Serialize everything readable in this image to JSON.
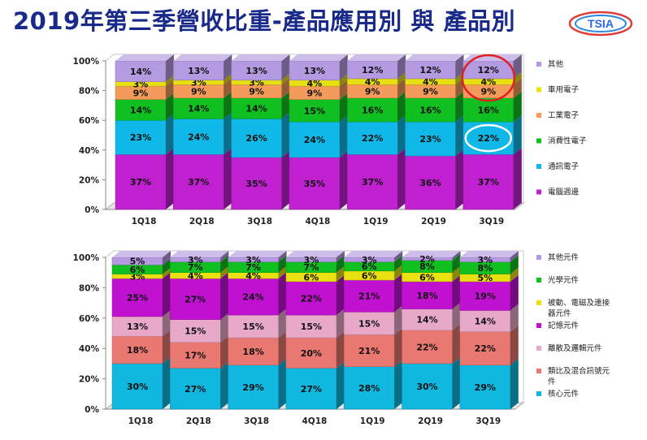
{
  "title": "2019年第三季營收比重-產品應用別 與 產品別",
  "logo_text": "TSIA",
  "colors": {
    "title": "#1a2a8a",
    "highlight_red": "#e02020",
    "highlight_white": "#ffffff"
  },
  "chart_data": [
    {
      "type": "bar",
      "stacked": true,
      "percent": true,
      "categories": [
        "1Q18",
        "2Q18",
        "3Q18",
        "4Q18",
        "1Q19",
        "2Q19",
        "3Q19"
      ],
      "y_ticks": [
        "0%",
        "20%",
        "40%",
        "60%",
        "80%",
        "100%"
      ],
      "ylim": [
        0,
        100
      ],
      "legend_position": "right",
      "series": [
        {
          "name": "電腦週邊",
          "color": "#c020d0",
          "values": [
            37,
            37,
            35,
            35,
            37,
            36,
            37
          ],
          "labels": [
            "37%",
            "37%",
            "35%",
            "35%",
            "37%",
            "36%",
            "37%"
          ]
        },
        {
          "name": "通訊電子",
          "color": "#10b8e8",
          "values": [
            23,
            24,
            26,
            24,
            22,
            23,
            22
          ],
          "labels": [
            "23%",
            "24%",
            "26%",
            "24%",
            "22%",
            "23%",
            "22%"
          ]
        },
        {
          "name": "消費性電子",
          "color": "#10c020",
          "values": [
            14,
            14,
            14,
            15,
            16,
            16,
            16
          ],
          "labels": [
            "14%",
            "14%",
            "14%",
            "15%",
            "16%",
            "16%",
            "16%"
          ]
        },
        {
          "name": "工業電子",
          "color": "#f49a5a",
          "values": [
            9,
            9,
            9,
            9,
            9,
            9,
            9
          ],
          "labels": [
            "9%",
            "9%",
            "9%",
            "9%",
            "9%",
            "9%",
            "9%"
          ]
        },
        {
          "name": "車用電子",
          "color": "#e8e010",
          "values": [
            3,
            3,
            3,
            4,
            4,
            4,
            4
          ],
          "labels": [
            "3%",
            "3%",
            "3%",
            "4%",
            "4%",
            "4%",
            "4%"
          ]
        },
        {
          "name": "其他",
          "color": "#b49ae0",
          "values": [
            14,
            13,
            13,
            13,
            12,
            12,
            12
          ],
          "labels": [
            "14%",
            "13%",
            "13%",
            "13%",
            "12%",
            "12%",
            "12%"
          ]
        }
      ],
      "highlights": [
        {
          "shape": "ellipse",
          "category": "3Q19",
          "series": "其他",
          "color": "red"
        },
        {
          "shape": "ellipse",
          "category": "3Q19",
          "series": "通訊電子",
          "color": "white"
        }
      ]
    },
    {
      "type": "bar",
      "stacked": true,
      "percent": true,
      "categories": [
        "1Q18",
        "2Q18",
        "3Q18",
        "4Q18",
        "1Q19",
        "2Q19",
        "3Q19"
      ],
      "y_ticks": [
        "0%",
        "20%",
        "40%",
        "60%",
        "80%",
        "100%"
      ],
      "ylim": [
        0,
        100
      ],
      "legend_position": "right",
      "series": [
        {
          "name": "核心元件",
          "color": "#10b8e0",
          "values": [
            30,
            27,
            29,
            27,
            28,
            30,
            29
          ],
          "labels": [
            "30%",
            "27%",
            "29%",
            "27%",
            "28%",
            "30%",
            "29%"
          ]
        },
        {
          "name": "類比及混合訊號元件",
          "color": "#e87870",
          "values": [
            18,
            17,
            18,
            20,
            21,
            22,
            22
          ],
          "labels": [
            "18%",
            "17%",
            "18%",
            "20%",
            "21%",
            "22%",
            "22%"
          ]
        },
        {
          "name": "離散及邏輯元件",
          "color": "#e8a8c8",
          "values": [
            13,
            15,
            15,
            15,
            15,
            14,
            14
          ],
          "labels": [
            "13%",
            "15%",
            "15%",
            "15%",
            "15%",
            "14%",
            "14%"
          ]
        },
        {
          "name": "記憶元件",
          "color": "#c010d0",
          "values": [
            25,
            27,
            24,
            22,
            21,
            18,
            19
          ],
          "labels": [
            "25%",
            "27%",
            "24%",
            "22%",
            "21%",
            "18%",
            "19%"
          ]
        },
        {
          "name": "被動、電磁及連接器元件",
          "color": "#e8e010",
          "values": [
            3,
            4,
            4,
            6,
            6,
            6,
            5
          ],
          "labels": [
            "3%",
            "4%",
            "4%",
            "6%",
            "6%",
            "6%",
            "5%"
          ]
        },
        {
          "name": "光學元件",
          "color": "#10c020",
          "values": [
            6,
            7,
            7,
            7,
            6,
            8,
            8
          ],
          "labels": [
            "6%",
            "7%",
            "7%",
            "7%",
            "6%",
            "8%",
            "8%"
          ]
        },
        {
          "name": "其他元件",
          "color": "#b49ae0",
          "values": [
            5,
            3,
            3,
            3,
            3,
            2,
            3
          ],
          "labels": [
            "5%",
            "3%",
            "3%",
            "3%",
            "3%",
            "2%",
            "3%"
          ]
        }
      ]
    }
  ]
}
